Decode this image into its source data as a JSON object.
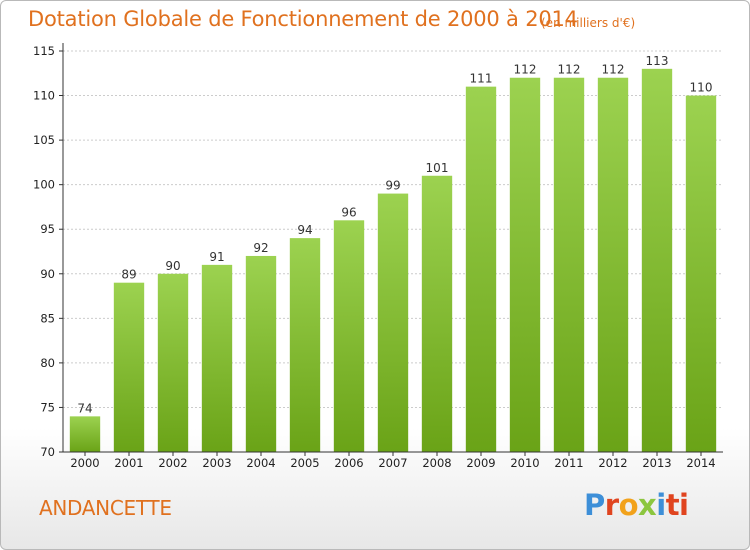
{
  "header": {
    "title": "Dotation Globale de Fonctionnement de 2000 à 2014",
    "subtitle": "(en milliers d'€)"
  },
  "footer": {
    "commune": "ANDANCETTE",
    "logo_text": [
      "P",
      "r",
      "o",
      "x",
      "i",
      "ti"
    ]
  },
  "colors": {
    "accent": "#e0711f",
    "bar_top": "#9cd250",
    "bar_bottom": "#6aa317",
    "grid": "#cccccc"
  },
  "chart_data": {
    "type": "bar",
    "title": "Dotation Globale de Fonctionnement de 2000 à 2014",
    "subtitle": "(en milliers d'€)",
    "categories": [
      "2000",
      "2001",
      "2002",
      "2003",
      "2004",
      "2005",
      "2006",
      "2007",
      "2008",
      "2009",
      "2010",
      "2011",
      "2012",
      "2013",
      "2014"
    ],
    "values": [
      74,
      89,
      90,
      91,
      92,
      94,
      96,
      99,
      101,
      111,
      112,
      112,
      112,
      113,
      110
    ],
    "xlabel": "",
    "ylabel": "",
    "ylim": [
      70,
      115
    ],
    "yticks": [
      70,
      75,
      80,
      85,
      90,
      95,
      100,
      105,
      110,
      115
    ],
    "grid": true,
    "legend": "none"
  }
}
